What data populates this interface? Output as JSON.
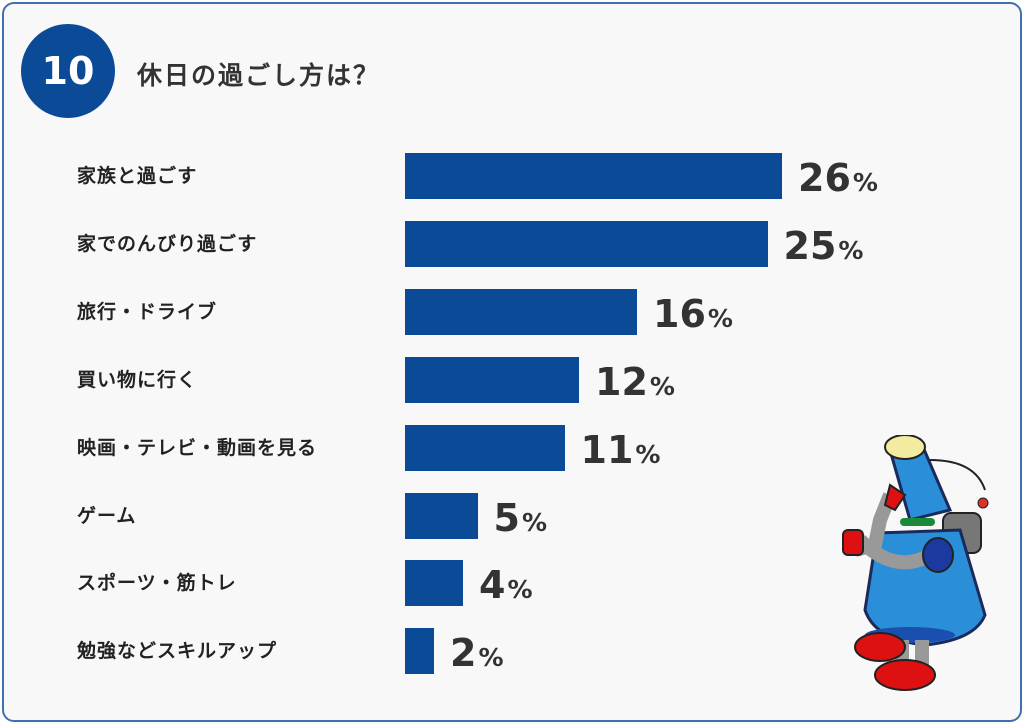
{
  "question_number": "10",
  "title": "休日の過ごし方は？",
  "colors": {
    "bar": "#0b4a96",
    "badge": "#0b4a96",
    "border": "#3f70b0",
    "background": "#f8f8f8"
  },
  "mascot": "robot-mascot-icon",
  "chart_data": {
    "type": "bar",
    "orientation": "horizontal",
    "categories": [
      "家族と過ごす",
      "家でのんびり過ごす",
      "旅行・ドライブ",
      "買い物に行く",
      "映画・テレビ・動画を見る",
      "ゲーム",
      "スポーツ・筋トレ",
      "勉強などスキルアップ"
    ],
    "values": [
      26,
      25,
      16,
      12,
      11,
      5,
      4,
      2
    ],
    "value_labels": [
      "26",
      "25",
      "16",
      "12",
      "11",
      "5",
      "4",
      "2"
    ],
    "unit": "%",
    "grid": false
  }
}
